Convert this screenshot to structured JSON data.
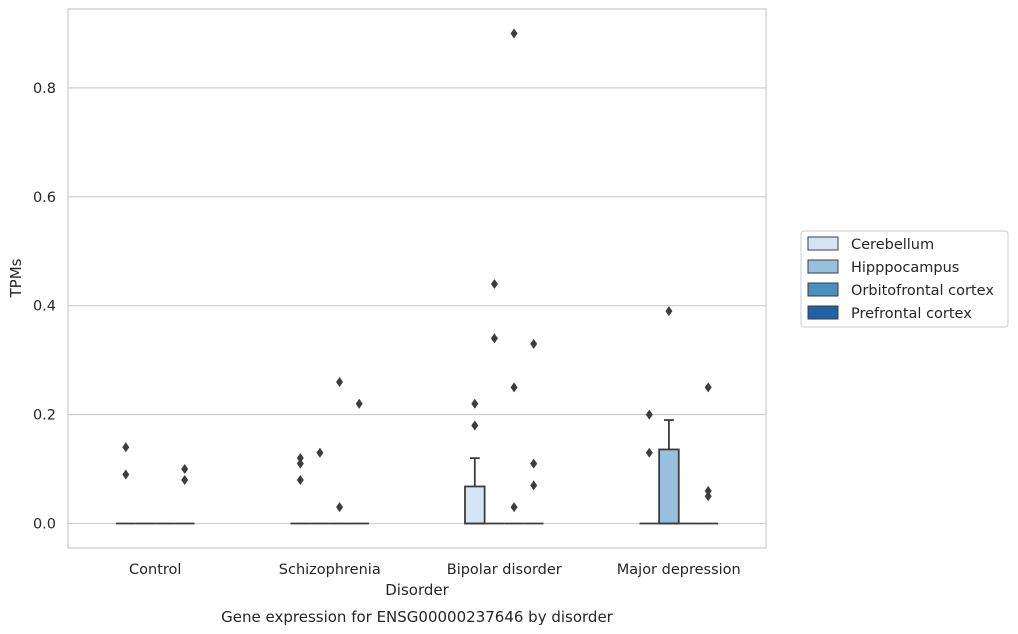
{
  "chart_data": {
    "type": "box",
    "xlabel": "Disorder",
    "ylabel": "TPMs",
    "caption": "Gene expression for ENSG00000237646 by disorder",
    "categories": [
      "Control",
      "Schizophrenia",
      "Bipolar disorder",
      "Major depression"
    ],
    "ylim": [
      -0.045,
      0.945
    ],
    "yticks": [
      0.0,
      0.2,
      0.4,
      0.6,
      0.8
    ],
    "ytick_labels": [
      "0.0",
      "0.2",
      "0.4",
      "0.6",
      "0.8"
    ],
    "grid": "horizontal",
    "legend_position": "right",
    "colors": {
      "Cerebellum": "#d6e5f4",
      "Hipppocampus": "#96c0de",
      "Orbitofrontal cortex": "#4a8fc2",
      "Prefrontal cortex": "#2060a7",
      "edge": "#3d3d3d",
      "grid": "#cccccc"
    },
    "series": [
      {
        "name": "Cerebellum",
        "boxes": [
          {
            "q1": 0,
            "median": 0,
            "q3": 0,
            "whislo": 0,
            "whishi": 0,
            "fliers": [
              0.14,
              0.09
            ]
          },
          {
            "q1": 0,
            "median": 0,
            "q3": 0,
            "whislo": 0,
            "whishi": 0,
            "fliers": [
              0.12,
              0.11,
              0.08
            ]
          },
          {
            "q1": 0,
            "median": 0,
            "q3": 0.068,
            "whislo": 0,
            "whishi": 0.12,
            "fliers": [
              0.22,
              0.18
            ]
          },
          {
            "q1": 0,
            "median": 0,
            "q3": 0,
            "whislo": 0,
            "whishi": 0,
            "fliers": [
              0.2,
              0.13
            ]
          }
        ]
      },
      {
        "name": "Hipppocampus",
        "boxes": [
          {
            "q1": 0,
            "median": 0,
            "q3": 0,
            "whislo": 0,
            "whishi": 0,
            "fliers": []
          },
          {
            "q1": 0,
            "median": 0,
            "q3": 0,
            "whislo": 0,
            "whishi": 0,
            "fliers": [
              0.13
            ]
          },
          {
            "q1": 0,
            "median": 0,
            "q3": 0,
            "whislo": 0,
            "whishi": 0,
            "fliers": [
              0.44,
              0.34
            ]
          },
          {
            "q1": 0,
            "median": 0,
            "q3": 0.136,
            "whislo": 0,
            "whishi": 0.19,
            "fliers": [
              0.39
            ]
          }
        ]
      },
      {
        "name": "Orbitofrontal cortex",
        "boxes": [
          {
            "q1": 0,
            "median": 0,
            "q3": 0,
            "whislo": 0,
            "whishi": 0,
            "fliers": []
          },
          {
            "q1": 0,
            "median": 0,
            "q3": 0,
            "whislo": 0,
            "whishi": 0,
            "fliers": [
              0.26,
              0.03
            ]
          },
          {
            "q1": 0,
            "median": 0,
            "q3": 0,
            "whislo": 0,
            "whishi": 0,
            "fliers": [
              0.9,
              0.25,
              0.03
            ]
          },
          {
            "q1": 0,
            "median": 0,
            "q3": 0,
            "whislo": 0,
            "whishi": 0,
            "fliers": []
          }
        ]
      },
      {
        "name": "Prefrontal cortex",
        "boxes": [
          {
            "q1": 0,
            "median": 0,
            "q3": 0,
            "whislo": 0,
            "whishi": 0,
            "fliers": [
              0.1,
              0.08
            ]
          },
          {
            "q1": 0,
            "median": 0,
            "q3": 0,
            "whislo": 0,
            "whishi": 0,
            "fliers": [
              0.22
            ]
          },
          {
            "q1": 0,
            "median": 0,
            "q3": 0,
            "whislo": 0,
            "whishi": 0,
            "fliers": [
              0.33,
              0.11,
              0.07
            ]
          },
          {
            "q1": 0,
            "median": 0,
            "q3": 0,
            "whislo": 0,
            "whishi": 0,
            "fliers": [
              0.25,
              0.06,
              0.05
            ]
          }
        ]
      }
    ]
  }
}
